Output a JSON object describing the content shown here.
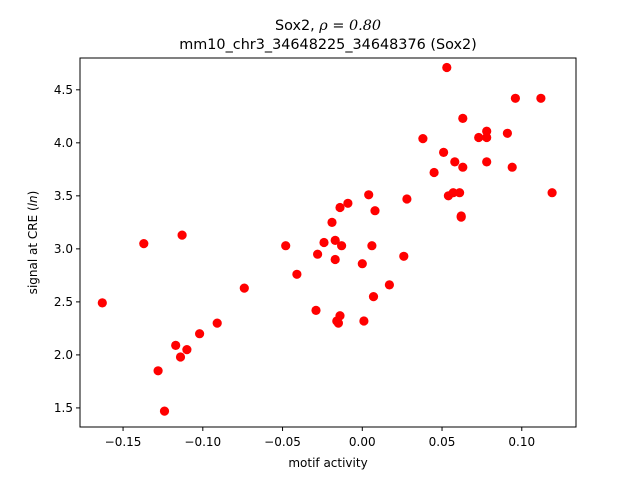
{
  "chart_data": {
    "type": "scatter",
    "title_line1_prefix": "Sox2, ",
    "title_line1_math": "ρ = 0.80",
    "title_line2": "mm10_chr3_34648225_34648376 (Sox2)",
    "xlabel": "motif activity",
    "ylabel": "signal at CRE (ln)",
    "xlim": [
      -0.177,
      0.134
    ],
    "ylim": [
      1.32,
      4.8
    ],
    "x_ticks": [
      -0.15,
      -0.1,
      -0.05,
      0.0,
      0.05,
      0.1
    ],
    "x_tick_labels": [
      "−0.15",
      "−0.10",
      "−0.05",
      "0.00",
      "0.05",
      "0.10"
    ],
    "y_ticks": [
      1.5,
      2.0,
      2.5,
      3.0,
      3.5,
      4.0,
      4.5
    ],
    "y_tick_labels": [
      "1.5",
      "2.0",
      "2.5",
      "3.0",
      "3.5",
      "4.0",
      "4.5"
    ],
    "marker_color": "#ff0000",
    "grid": false,
    "points": [
      {
        "x": -0.163,
        "y": 2.49
      },
      {
        "x": -0.137,
        "y": 3.05
      },
      {
        "x": -0.128,
        "y": 1.85
      },
      {
        "x": -0.124,
        "y": 1.47
      },
      {
        "x": -0.117,
        "y": 2.09
      },
      {
        "x": -0.114,
        "y": 1.98
      },
      {
        "x": -0.113,
        "y": 3.13
      },
      {
        "x": -0.11,
        "y": 2.05
      },
      {
        "x": -0.102,
        "y": 2.2
      },
      {
        "x": -0.091,
        "y": 2.3
      },
      {
        "x": -0.074,
        "y": 2.63
      },
      {
        "x": -0.048,
        "y": 3.03
      },
      {
        "x": -0.041,
        "y": 2.76
      },
      {
        "x": -0.029,
        "y": 2.42
      },
      {
        "x": -0.028,
        "y": 2.95
      },
      {
        "x": -0.024,
        "y": 3.06
      },
      {
        "x": -0.019,
        "y": 3.25
      },
      {
        "x": -0.017,
        "y": 3.08
      },
      {
        "x": -0.017,
        "y": 2.9
      },
      {
        "x": -0.016,
        "y": 2.32
      },
      {
        "x": -0.015,
        "y": 2.3
      },
      {
        "x": -0.014,
        "y": 3.39
      },
      {
        "x": -0.014,
        "y": 2.37
      },
      {
        "x": -0.013,
        "y": 3.03
      },
      {
        "x": -0.009,
        "y": 3.43
      },
      {
        "x": 0.0,
        "y": 2.86
      },
      {
        "x": 0.001,
        "y": 2.32
      },
      {
        "x": 0.004,
        "y": 3.51
      },
      {
        "x": 0.006,
        "y": 3.03
      },
      {
        "x": 0.007,
        "y": 2.55
      },
      {
        "x": 0.008,
        "y": 3.36
      },
      {
        "x": 0.017,
        "y": 2.66
      },
      {
        "x": 0.026,
        "y": 2.93
      },
      {
        "x": 0.028,
        "y": 3.47
      },
      {
        "x": 0.038,
        "y": 4.04
      },
      {
        "x": 0.045,
        "y": 3.72
      },
      {
        "x": 0.051,
        "y": 3.91
      },
      {
        "x": 0.053,
        "y": 4.71
      },
      {
        "x": 0.054,
        "y": 3.5
      },
      {
        "x": 0.057,
        "y": 3.53
      },
      {
        "x": 0.058,
        "y": 3.82
      },
      {
        "x": 0.061,
        "y": 3.53
      },
      {
        "x": 0.062,
        "y": 3.31
      },
      {
        "x": 0.062,
        "y": 3.3
      },
      {
        "x": 0.063,
        "y": 3.77
      },
      {
        "x": 0.063,
        "y": 4.23
      },
      {
        "x": 0.073,
        "y": 4.05
      },
      {
        "x": 0.078,
        "y": 4.11
      },
      {
        "x": 0.078,
        "y": 4.05
      },
      {
        "x": 0.078,
        "y": 3.82
      },
      {
        "x": 0.091,
        "y": 4.09
      },
      {
        "x": 0.094,
        "y": 3.77
      },
      {
        "x": 0.096,
        "y": 4.42
      },
      {
        "x": 0.112,
        "y": 4.42
      },
      {
        "x": 0.119,
        "y": 3.53
      }
    ]
  }
}
